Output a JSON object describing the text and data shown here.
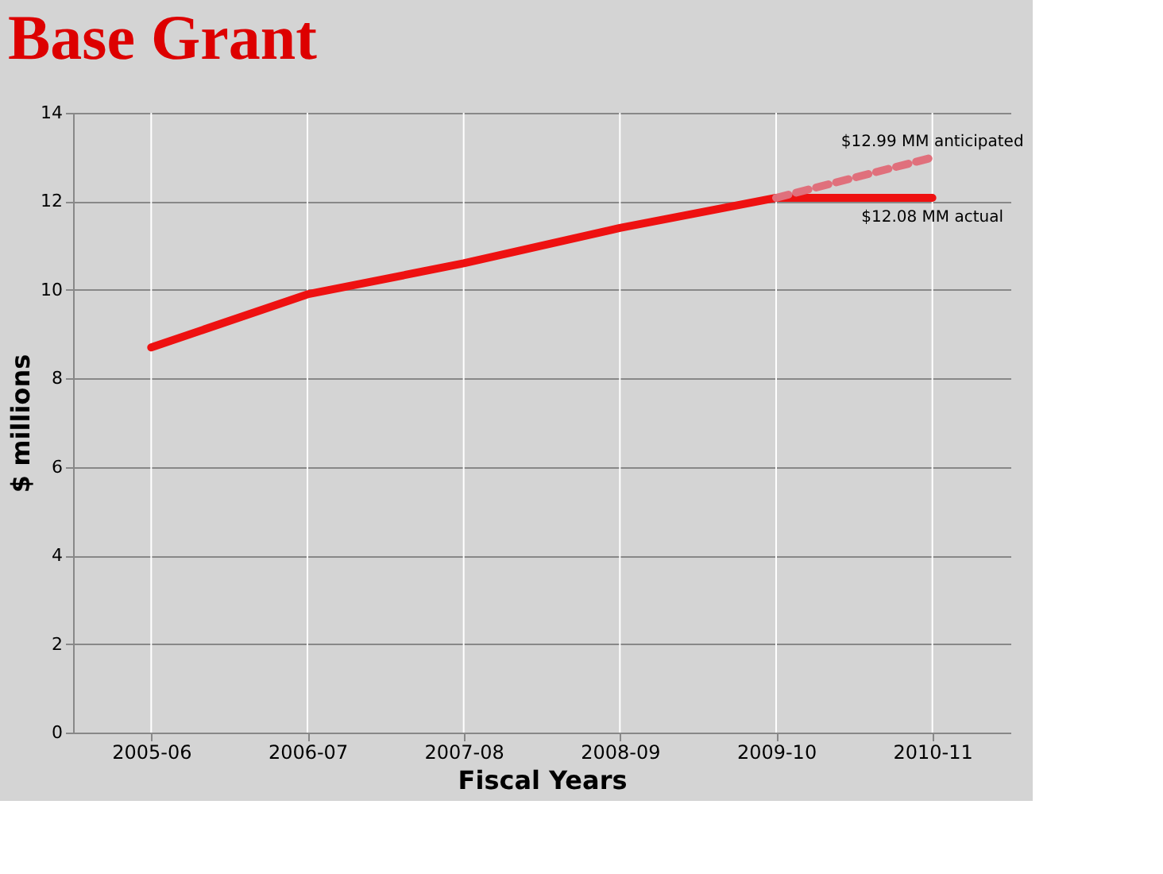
{
  "chart_data": {
    "type": "line",
    "title": "Base Grant",
    "xlabel": "Fiscal Years",
    "ylabel": "$ millions",
    "categories": [
      "2005-06",
      "2006-07",
      "2007-08",
      "2008-09",
      "2009-10",
      "2010-11"
    ],
    "series": [
      {
        "color": "#ee1111",
        "values": [
          8.7,
          9.9,
          10.6,
          11.4,
          12.08,
          12.08
        ],
        "line_style": "solid"
      },
      {
        "color": "#e0707c",
        "values": [
          null,
          null,
          null,
          null,
          12.08,
          12.99
        ],
        "line_style": "dashed"
      }
    ],
    "ylim": [
      0,
      14
    ],
    "yticks": [
      0,
      2,
      4,
      6,
      8,
      10,
      12,
      14
    ],
    "grid": true,
    "marker": "none",
    "annotations": [
      {
        "text": "$12.99 MM anticipated",
        "x": "2010-11",
        "y": 12.99
      },
      {
        "text": "$12.08 MM actual",
        "x": "2010-11",
        "y": 12.08
      }
    ]
  }
}
